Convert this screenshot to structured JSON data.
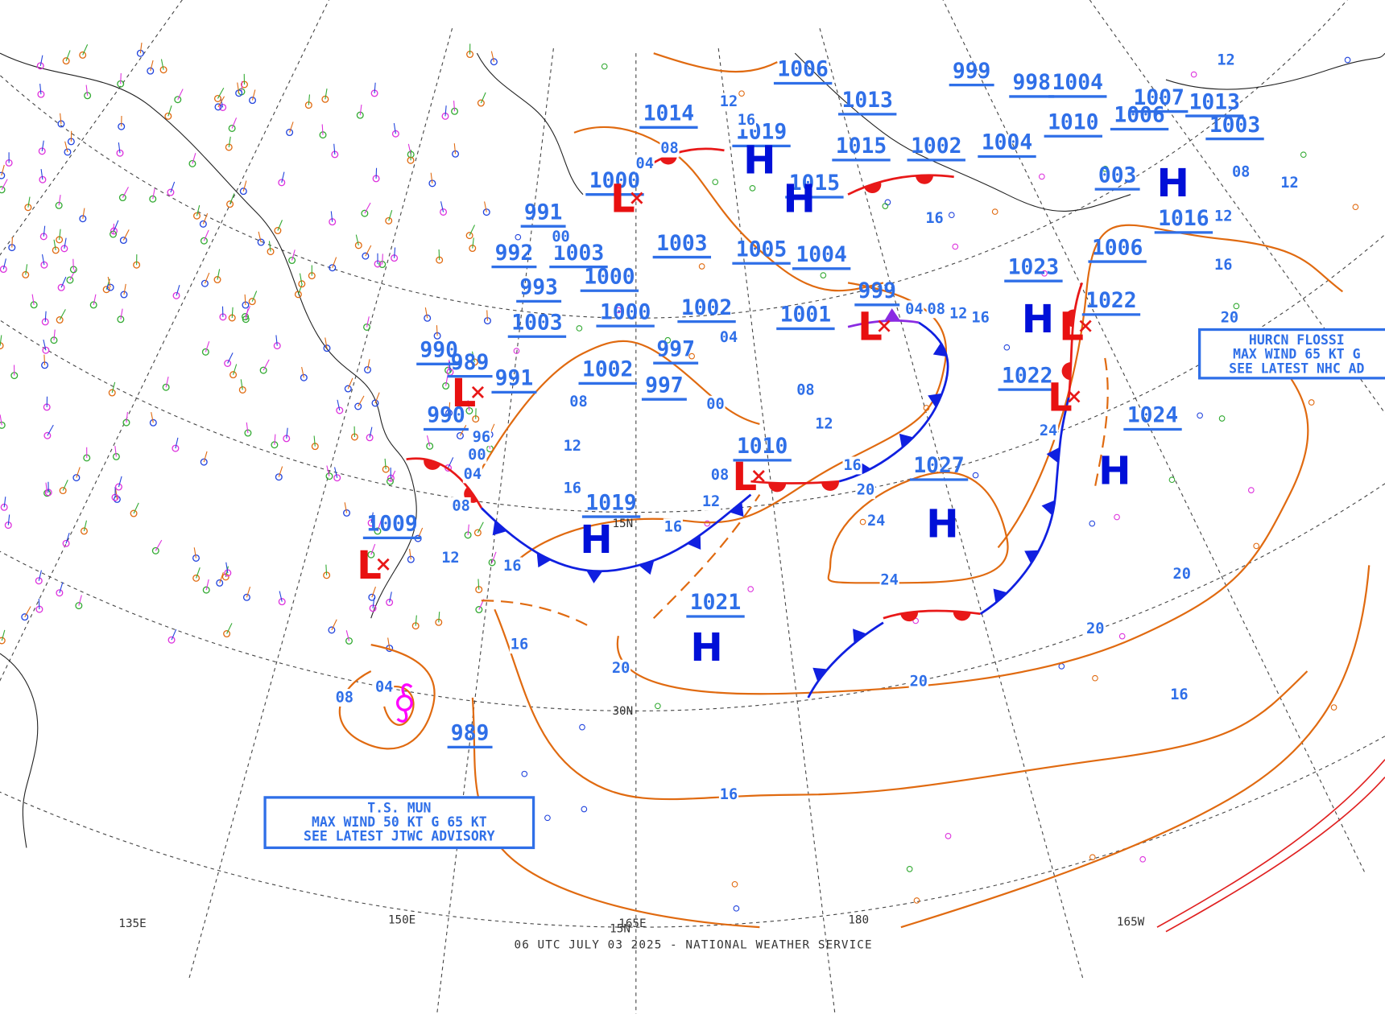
{
  "map": {
    "footer": "06 UTC JULY 03 2025 - NATIONAL WEATHER SERVICE",
    "longitude_labels": [
      "150E",
      "165E",
      "180",
      "165W",
      "135E"
    ],
    "latitude_labels": [
      "30N",
      "15N",
      "15N"
    ],
    "highs": [
      {
        "pressure": "1021",
        "symbol": "H"
      },
      {
        "pressure": "1019",
        "symbol": "H"
      },
      {
        "pressure": "1027",
        "symbol": "H"
      },
      {
        "pressure": "1024",
        "symbol": "H"
      },
      {
        "pressure": "1023",
        "symbol": "H"
      },
      {
        "pressure": "1016",
        "symbol": "H"
      },
      {
        "pressure": "1019",
        "symbol": "H"
      },
      {
        "pressure": "1015",
        "symbol": "H"
      }
    ],
    "lows": [
      {
        "pressure": "1009",
        "symbol": "L"
      },
      {
        "pressure": "1010",
        "symbol": "L"
      },
      {
        "pressure": "1022",
        "symbol": "L"
      },
      {
        "pressure": "999",
        "symbol": "L"
      },
      {
        "pressure": "1022",
        "symbol": "L"
      },
      {
        "pressure": "989",
        "symbol": "L"
      },
      {
        "pressure": "1000",
        "symbol": "L"
      }
    ],
    "pressure_labels": [
      "989",
      "1006",
      "1014",
      "991",
      "992",
      "1003",
      "1000",
      "1000",
      "1003",
      "1002",
      "997",
      "997",
      "990",
      "990",
      "991",
      "1005",
      "1004",
      "1001",
      "1002",
      "1003",
      "1013",
      "1015",
      "1002",
      "1004",
      "999",
      "998",
      "1004",
      "1007",
      "1010",
      "1006",
      "1003",
      "003",
      "1006",
      "1013",
      "993"
    ],
    "isobar_labels": [
      "16",
      "16",
      "20",
      "20",
      "20",
      "20",
      "16",
      "24",
      "24",
      "20",
      "16",
      "16",
      "12",
      "08",
      "12",
      "08",
      "12",
      "16",
      "08",
      "04",
      "00",
      "96",
      "08",
      "04",
      "20",
      "16",
      "12",
      "08",
      "12",
      "12",
      "16",
      "12",
      "16",
      "08",
      "04",
      "24",
      "12",
      "16",
      "08",
      "04",
      "00",
      "04",
      "00",
      "12",
      "16",
      "08"
    ],
    "advisories": [
      {
        "lines": [
          "T.S. MUN",
          "MAX WIND 50 KT G 65 KT",
          "SEE LATEST JTWC ADVISORY"
        ]
      },
      {
        "lines": [
          "HURCN FLOSSI",
          "MAX WIND 65 KT G",
          "SEE LATEST NHC AD"
        ]
      }
    ]
  }
}
